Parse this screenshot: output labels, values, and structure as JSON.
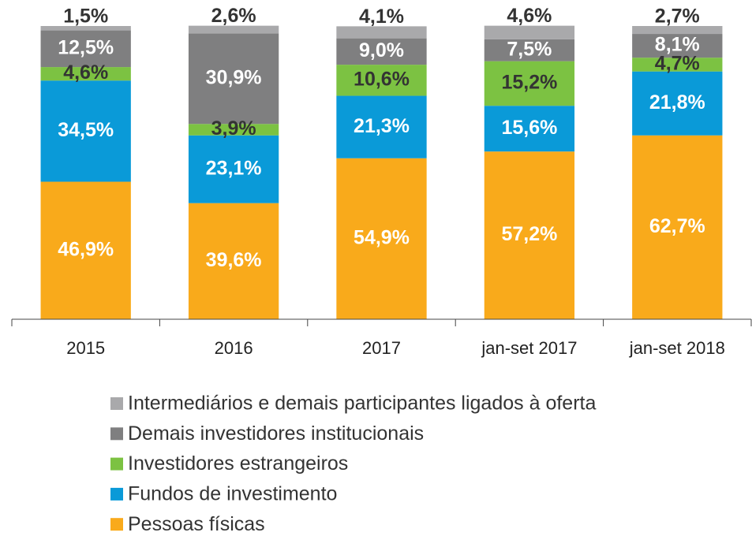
{
  "chart_data": {
    "type": "stacked_bar",
    "categories": [
      "2015",
      "2016",
      "2017",
      "jan-set 2017",
      "jan-set 2018"
    ],
    "ylim": [
      0,
      100
    ],
    "series": [
      {
        "name": "Pessoas físicas",
        "color": "#f9aa1b",
        "label_color": "#ffffff",
        "values": [
          46.9,
          39.6,
          54.9,
          57.2,
          62.7
        ],
        "value_labels": [
          "46,9%",
          "39,6%",
          "54,9%",
          "57,2%",
          "62,7%"
        ]
      },
      {
        "name": "Fundos de investimento",
        "color": "#0a9ad8",
        "label_color": "#ffffff",
        "values": [
          34.5,
          23.1,
          21.3,
          15.6,
          21.8
        ],
        "value_labels": [
          "34,5%",
          "23,1%",
          "21,3%",
          "15,6%",
          "21,8%"
        ]
      },
      {
        "name": "Investidores estrangeiros",
        "color": "#7cc242",
        "label_color": "#333333",
        "values": [
          4.6,
          3.9,
          10.6,
          15.2,
          4.7
        ],
        "value_labels": [
          "4,6%",
          "3,9%",
          "10,6%",
          "15,2%",
          "4,7%"
        ]
      },
      {
        "name": "Demais investidores institucionais",
        "color": "#7f7f80",
        "label_color": "#ffffff",
        "values": [
          12.5,
          30.9,
          9.0,
          7.5,
          8.1
        ],
        "value_labels": [
          "12,5%",
          "30,9%",
          "9,0%",
          "7,5%",
          "8,1%"
        ]
      },
      {
        "name": "Intermediários e demais participantes ligados à oferta",
        "color": "#a9a9ab",
        "label_color": "#333333",
        "values": [
          1.5,
          2.6,
          4.1,
          4.6,
          2.7
        ],
        "value_labels": [
          "1,5%",
          "2,6%",
          "4,1%",
          "4,6%",
          "2,7%"
        ]
      }
    ]
  }
}
